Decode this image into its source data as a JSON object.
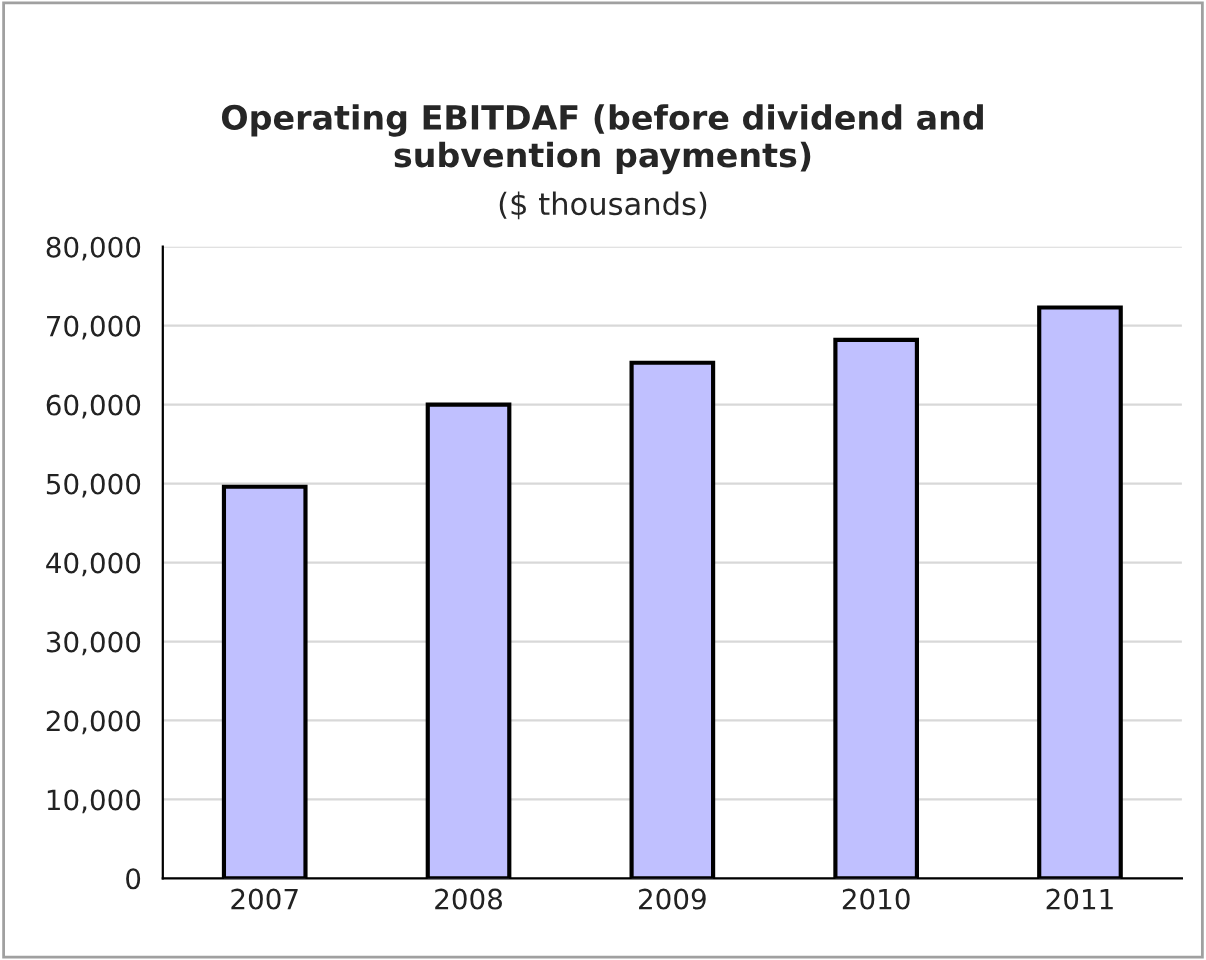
{
  "chart_data": {
    "type": "bar",
    "title": "Operating EBITDAF (before dividend and\nsubvention payments)",
    "subtitle": "($ thousands)",
    "categories": [
      "2007",
      "2008",
      "2009",
      "2010",
      "2011"
    ],
    "values": [
      49600,
      60000,
      65300,
      68200,
      72300
    ],
    "color": "#c0c0ff",
    "ylim": [
      0,
      80000
    ],
    "yticks": [
      {
        "value": 0,
        "label": "0"
      },
      {
        "value": 10000,
        "label": "10,000"
      },
      {
        "value": 20000,
        "label": "20,000"
      },
      {
        "value": 30000,
        "label": "30,000"
      },
      {
        "value": 40000,
        "label": "40,000"
      },
      {
        "value": 50000,
        "label": "50,000"
      },
      {
        "value": 60000,
        "label": "60,000"
      },
      {
        "value": 70000,
        "label": "70,000"
      },
      {
        "value": 80000,
        "label": "80,000"
      }
    ],
    "grid": "y"
  }
}
